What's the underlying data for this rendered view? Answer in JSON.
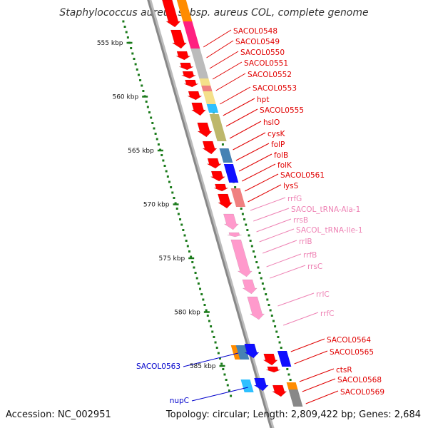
{
  "title": "Staphylococcus aureus subsp. aureus COL, complete genome",
  "footer": {
    "accession": "Accession: NC_002951",
    "topology": "Topology: circular; Length: 2,809,422 bp; Genes: 2,684"
  },
  "colors": {
    "backbone": "#888888",
    "protein": "#ff0000",
    "rna": "#ff9acc",
    "rna_label": "#ee82b4",
    "protein_label": "#e00000",
    "left_label": "#0000cc",
    "tick": "#1a7a1a"
  },
  "scale": {
    "ticks": [
      {
        "label": "555 kbp",
        "kbp": 555
      },
      {
        "label": "560 kbp",
        "kbp": 560
      },
      {
        "label": "565 kbp",
        "kbp": 565
      },
      {
        "label": "570 kbp",
        "kbp": 570
      },
      {
        "label": "575 kbp",
        "kbp": 575
      },
      {
        "label": "580 kbp",
        "kbp": 580
      },
      {
        "label": "585 kbp",
        "kbp": 585
      }
    ]
  },
  "right_labels": [
    {
      "text": "SACOL0548",
      "type": "protein"
    },
    {
      "text": "SACOL0549",
      "type": "protein"
    },
    {
      "text": "SACOL0550",
      "type": "protein"
    },
    {
      "text": "SACOL0551",
      "type": "protein"
    },
    {
      "text": "SACOL0552",
      "type": "protein"
    },
    {
      "text": "SACOL0553",
      "type": "protein"
    },
    {
      "text": "hpt",
      "type": "protein"
    },
    {
      "text": "SACOL0555",
      "type": "protein"
    },
    {
      "text": "hslO",
      "type": "protein"
    },
    {
      "text": "cysK",
      "type": "protein"
    },
    {
      "text": "folP",
      "type": "protein"
    },
    {
      "text": "folB",
      "type": "protein"
    },
    {
      "text": "folK",
      "type": "protein"
    },
    {
      "text": "SACOL0561",
      "type": "protein"
    },
    {
      "text": "lysS",
      "type": "protein"
    },
    {
      "text": "rrfG",
      "type": "rna"
    },
    {
      "text": "SACOL_tRNA-Ala-1",
      "type": "rna"
    },
    {
      "text": "rrsB",
      "type": "rna"
    },
    {
      "text": "SACOL_tRNA-Ile-1",
      "type": "rna"
    },
    {
      "text": "rrlB",
      "type": "rna"
    },
    {
      "text": "rrfB",
      "type": "rna"
    },
    {
      "text": "rrsC",
      "type": "rna"
    },
    {
      "text": "rrlC",
      "type": "rna"
    },
    {
      "text": "rrfC",
      "type": "rna"
    },
    {
      "text": "SACOL0564",
      "type": "protein"
    },
    {
      "text": "SACOL0565",
      "type": "protein"
    },
    {
      "text": "ctsR",
      "type": "protein"
    },
    {
      "text": "SACOL0568",
      "type": "protein"
    },
    {
      "text": "SACOL0569",
      "type": "protein"
    }
  ],
  "left_labels": [
    {
      "text": "SACOL0563"
    },
    {
      "text": "nupC"
    }
  ]
}
